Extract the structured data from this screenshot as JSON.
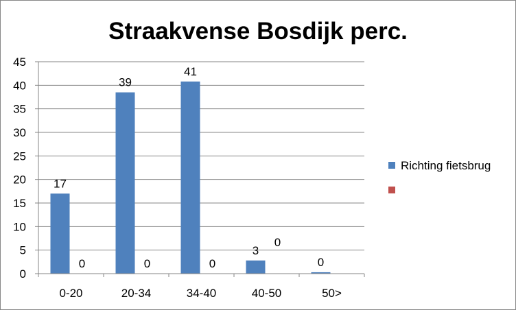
{
  "chart_data": {
    "type": "bar",
    "title": "Straakvense Bosdijk perc.",
    "xlabel": "",
    "ylabel": "",
    "categories": [
      "0-20",
      "20-34",
      "34-40",
      "40-50",
      "50>"
    ],
    "series": [
      {
        "name": "Richting fietsbrug",
        "color": "#4F81BD",
        "values": [
          17,
          38.5,
          40.8,
          2.8,
          0.3
        ],
        "labels": [
          "17",
          "39",
          "41",
          "3",
          "0"
        ]
      },
      {
        "name": "",
        "color": "#C0504D",
        "values": [
          0,
          0,
          0,
          0,
          null
        ],
        "labels": [
          "0",
          "0",
          "0",
          "0",
          ""
        ]
      }
    ],
    "ylim": [
      0,
      45
    ],
    "yticks": [
      0,
      5,
      10,
      15,
      20,
      25,
      30,
      35,
      40,
      45
    ],
    "grid": true,
    "legend": "right"
  }
}
